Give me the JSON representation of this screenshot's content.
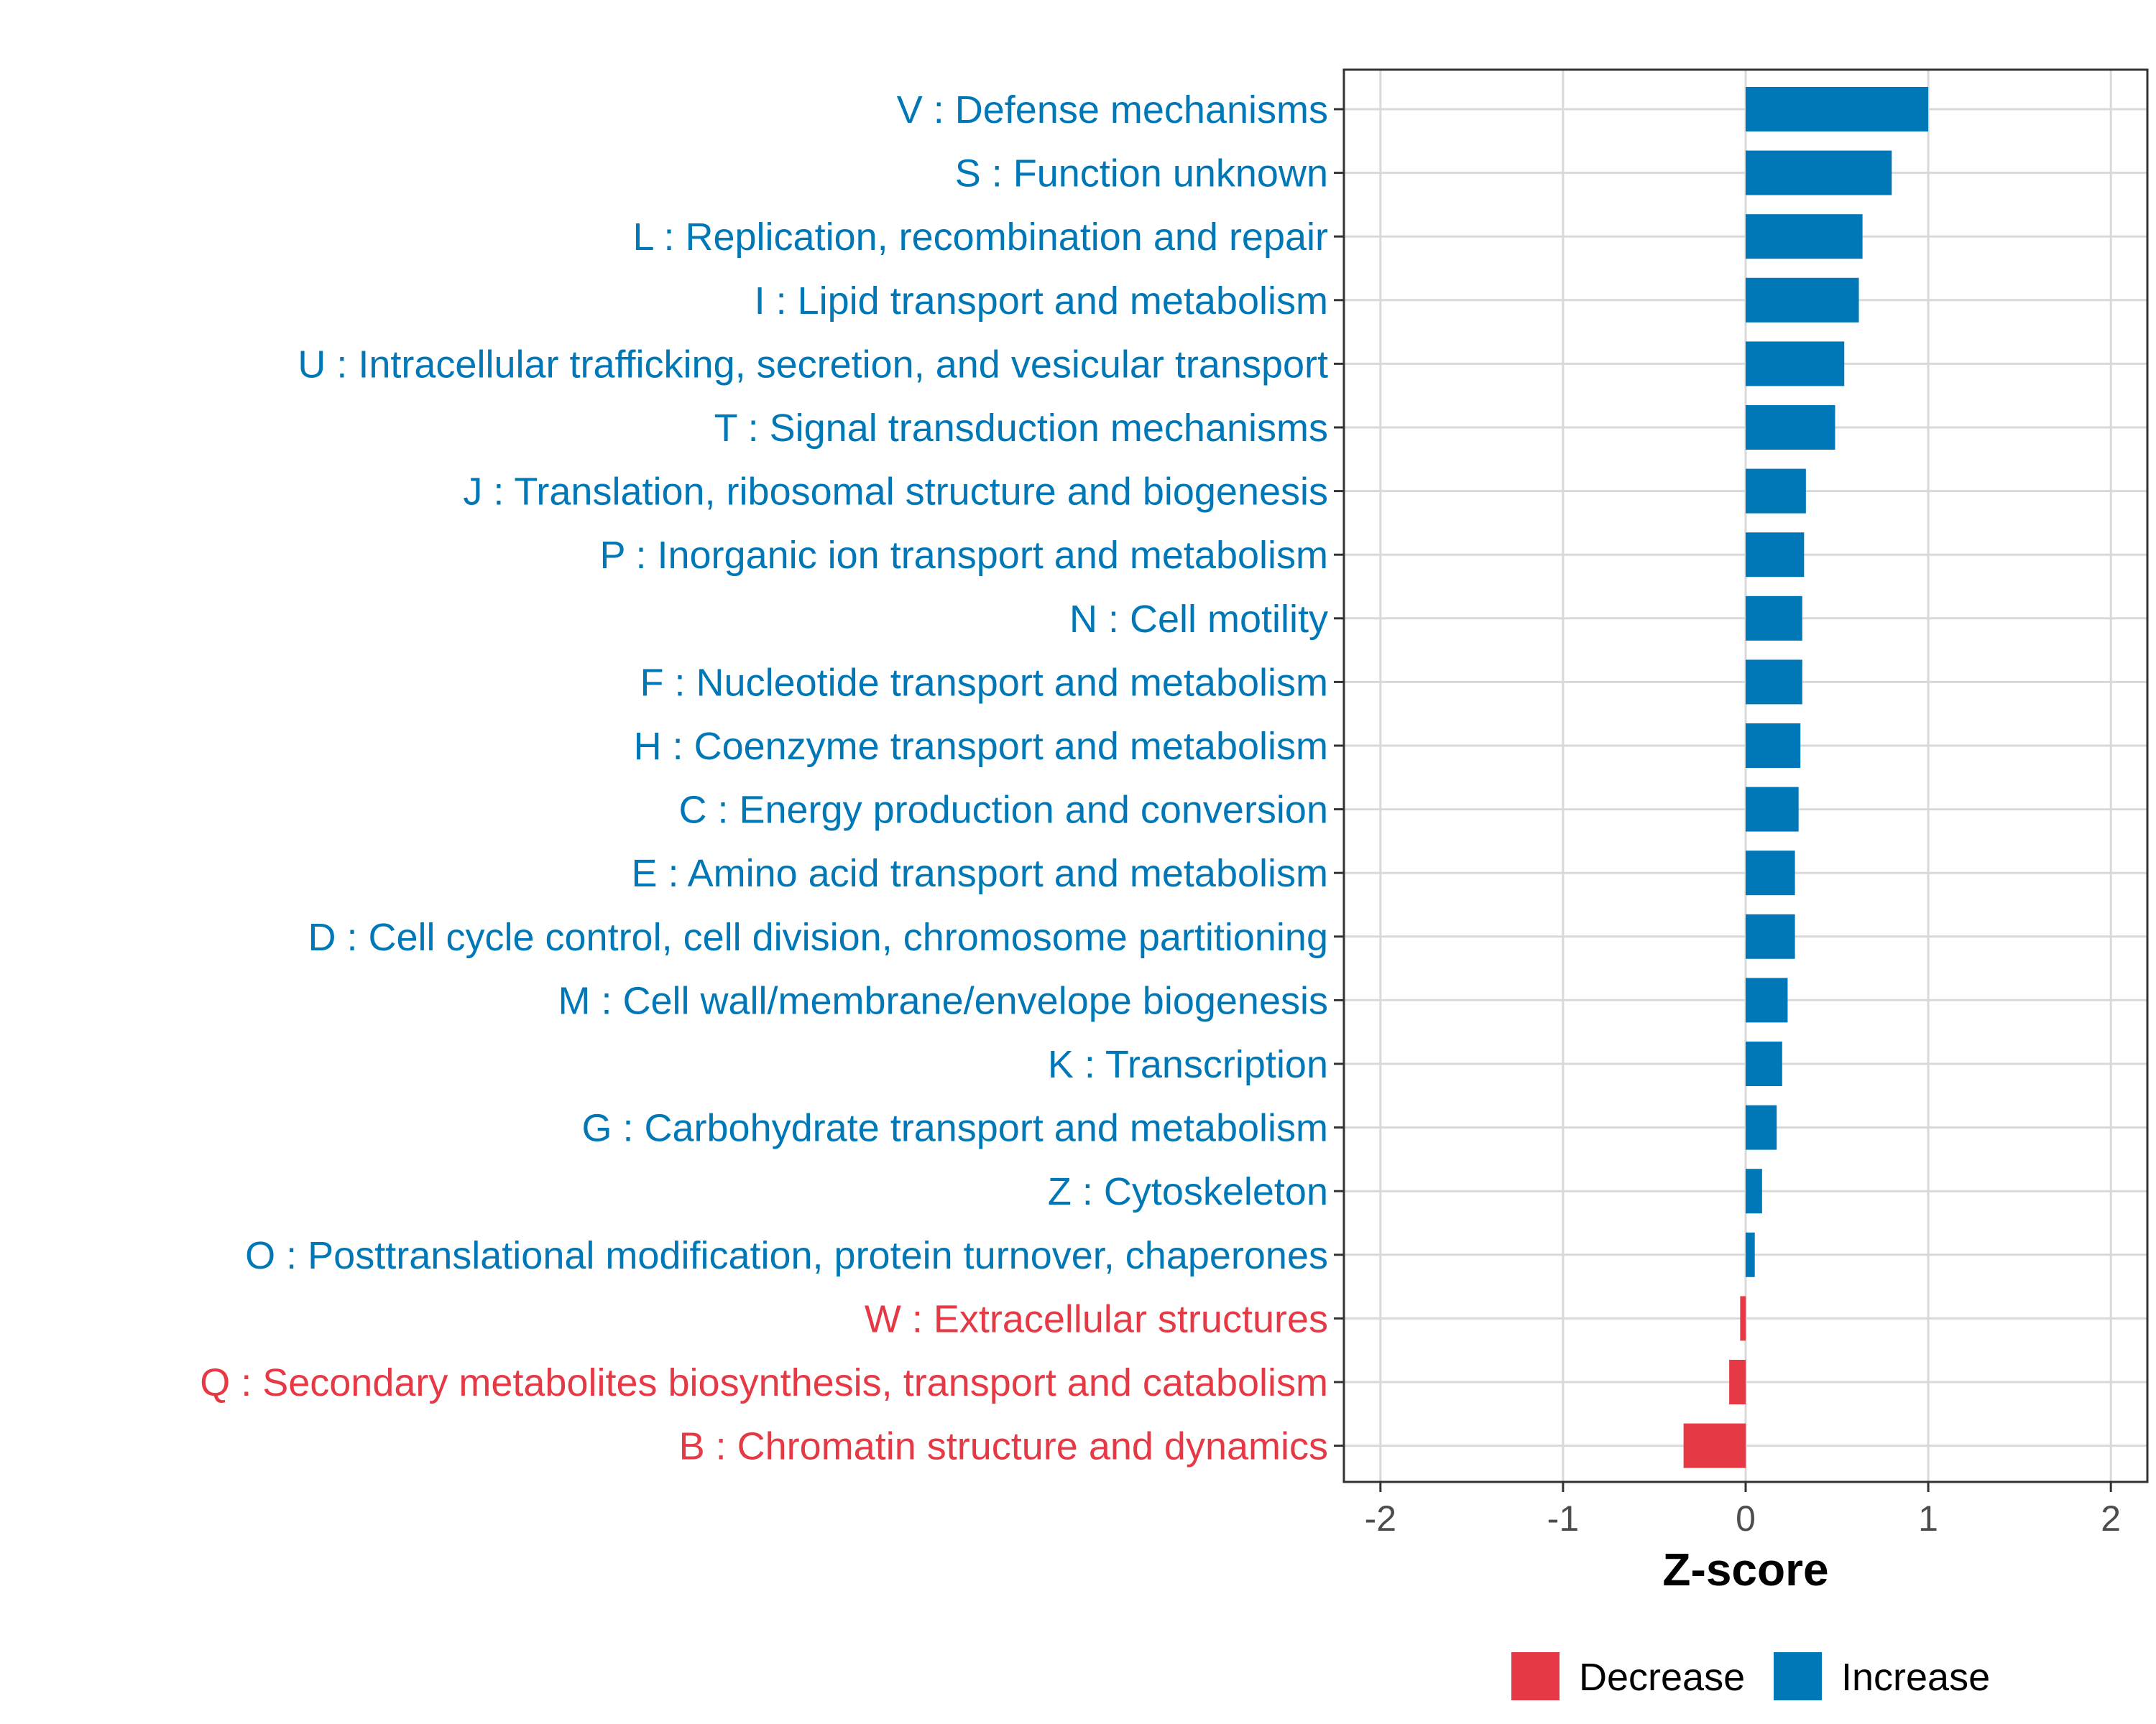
{
  "chart_data": {
    "type": "bar",
    "orientation": "horizontal",
    "xlabel": "Z-score",
    "xlim": [
      -2.2,
      2.2
    ],
    "x_ticks": [
      -2,
      -1,
      0,
      1,
      2
    ],
    "x_tick_labels": [
      "-2",
      "-1",
      "0",
      "1",
      "2"
    ],
    "grid": true,
    "legend_position": "bottom",
    "colors": {
      "Decrease": "#e63946",
      "Increase": "#0077b6"
    },
    "legend": [
      {
        "label": "Decrease",
        "color": "#e63946"
      },
      {
        "label": "Increase",
        "color": "#0077b6"
      }
    ],
    "categories": [
      "V : Defense mechanisms",
      "S : Function unknown",
      "L : Replication, recombination and repair",
      "I : Lipid transport and metabolism",
      "U : Intracellular trafficking, secretion, and vesicular transport",
      "T : Signal transduction mechanisms",
      "J : Translation, ribosomal structure and biogenesis",
      "P : Inorganic ion transport and metabolism",
      "N : Cell motility",
      "F : Nucleotide transport and metabolism",
      "H : Coenzyme transport and metabolism",
      "C : Energy production and conversion",
      "E : Amino acid transport and metabolism",
      "D : Cell cycle control, cell division, chromosome partitioning",
      "M : Cell wall/membrane/envelope biogenesis",
      "K : Transcription",
      "G : Carbohydrate transport and metabolism",
      "Z : Cytoskeleton",
      "O : Posttranslational modification, protein turnover, chaperones",
      "W : Extracellular structures",
      "Q : Secondary metabolites biosynthesis, transport and catabolism",
      "B : Chromatin structure and dynamics"
    ],
    "values": [
      1.0,
      0.8,
      0.64,
      0.62,
      0.54,
      0.49,
      0.33,
      0.32,
      0.31,
      0.31,
      0.3,
      0.29,
      0.27,
      0.27,
      0.23,
      0.2,
      0.17,
      0.09,
      0.05,
      -0.03,
      -0.09,
      -0.34
    ],
    "groups": [
      "Increase",
      "Increase",
      "Increase",
      "Increase",
      "Increase",
      "Increase",
      "Increase",
      "Increase",
      "Increase",
      "Increase",
      "Increase",
      "Increase",
      "Increase",
      "Increase",
      "Increase",
      "Increase",
      "Increase",
      "Increase",
      "Increase",
      "Decrease",
      "Decrease",
      "Decrease"
    ]
  }
}
